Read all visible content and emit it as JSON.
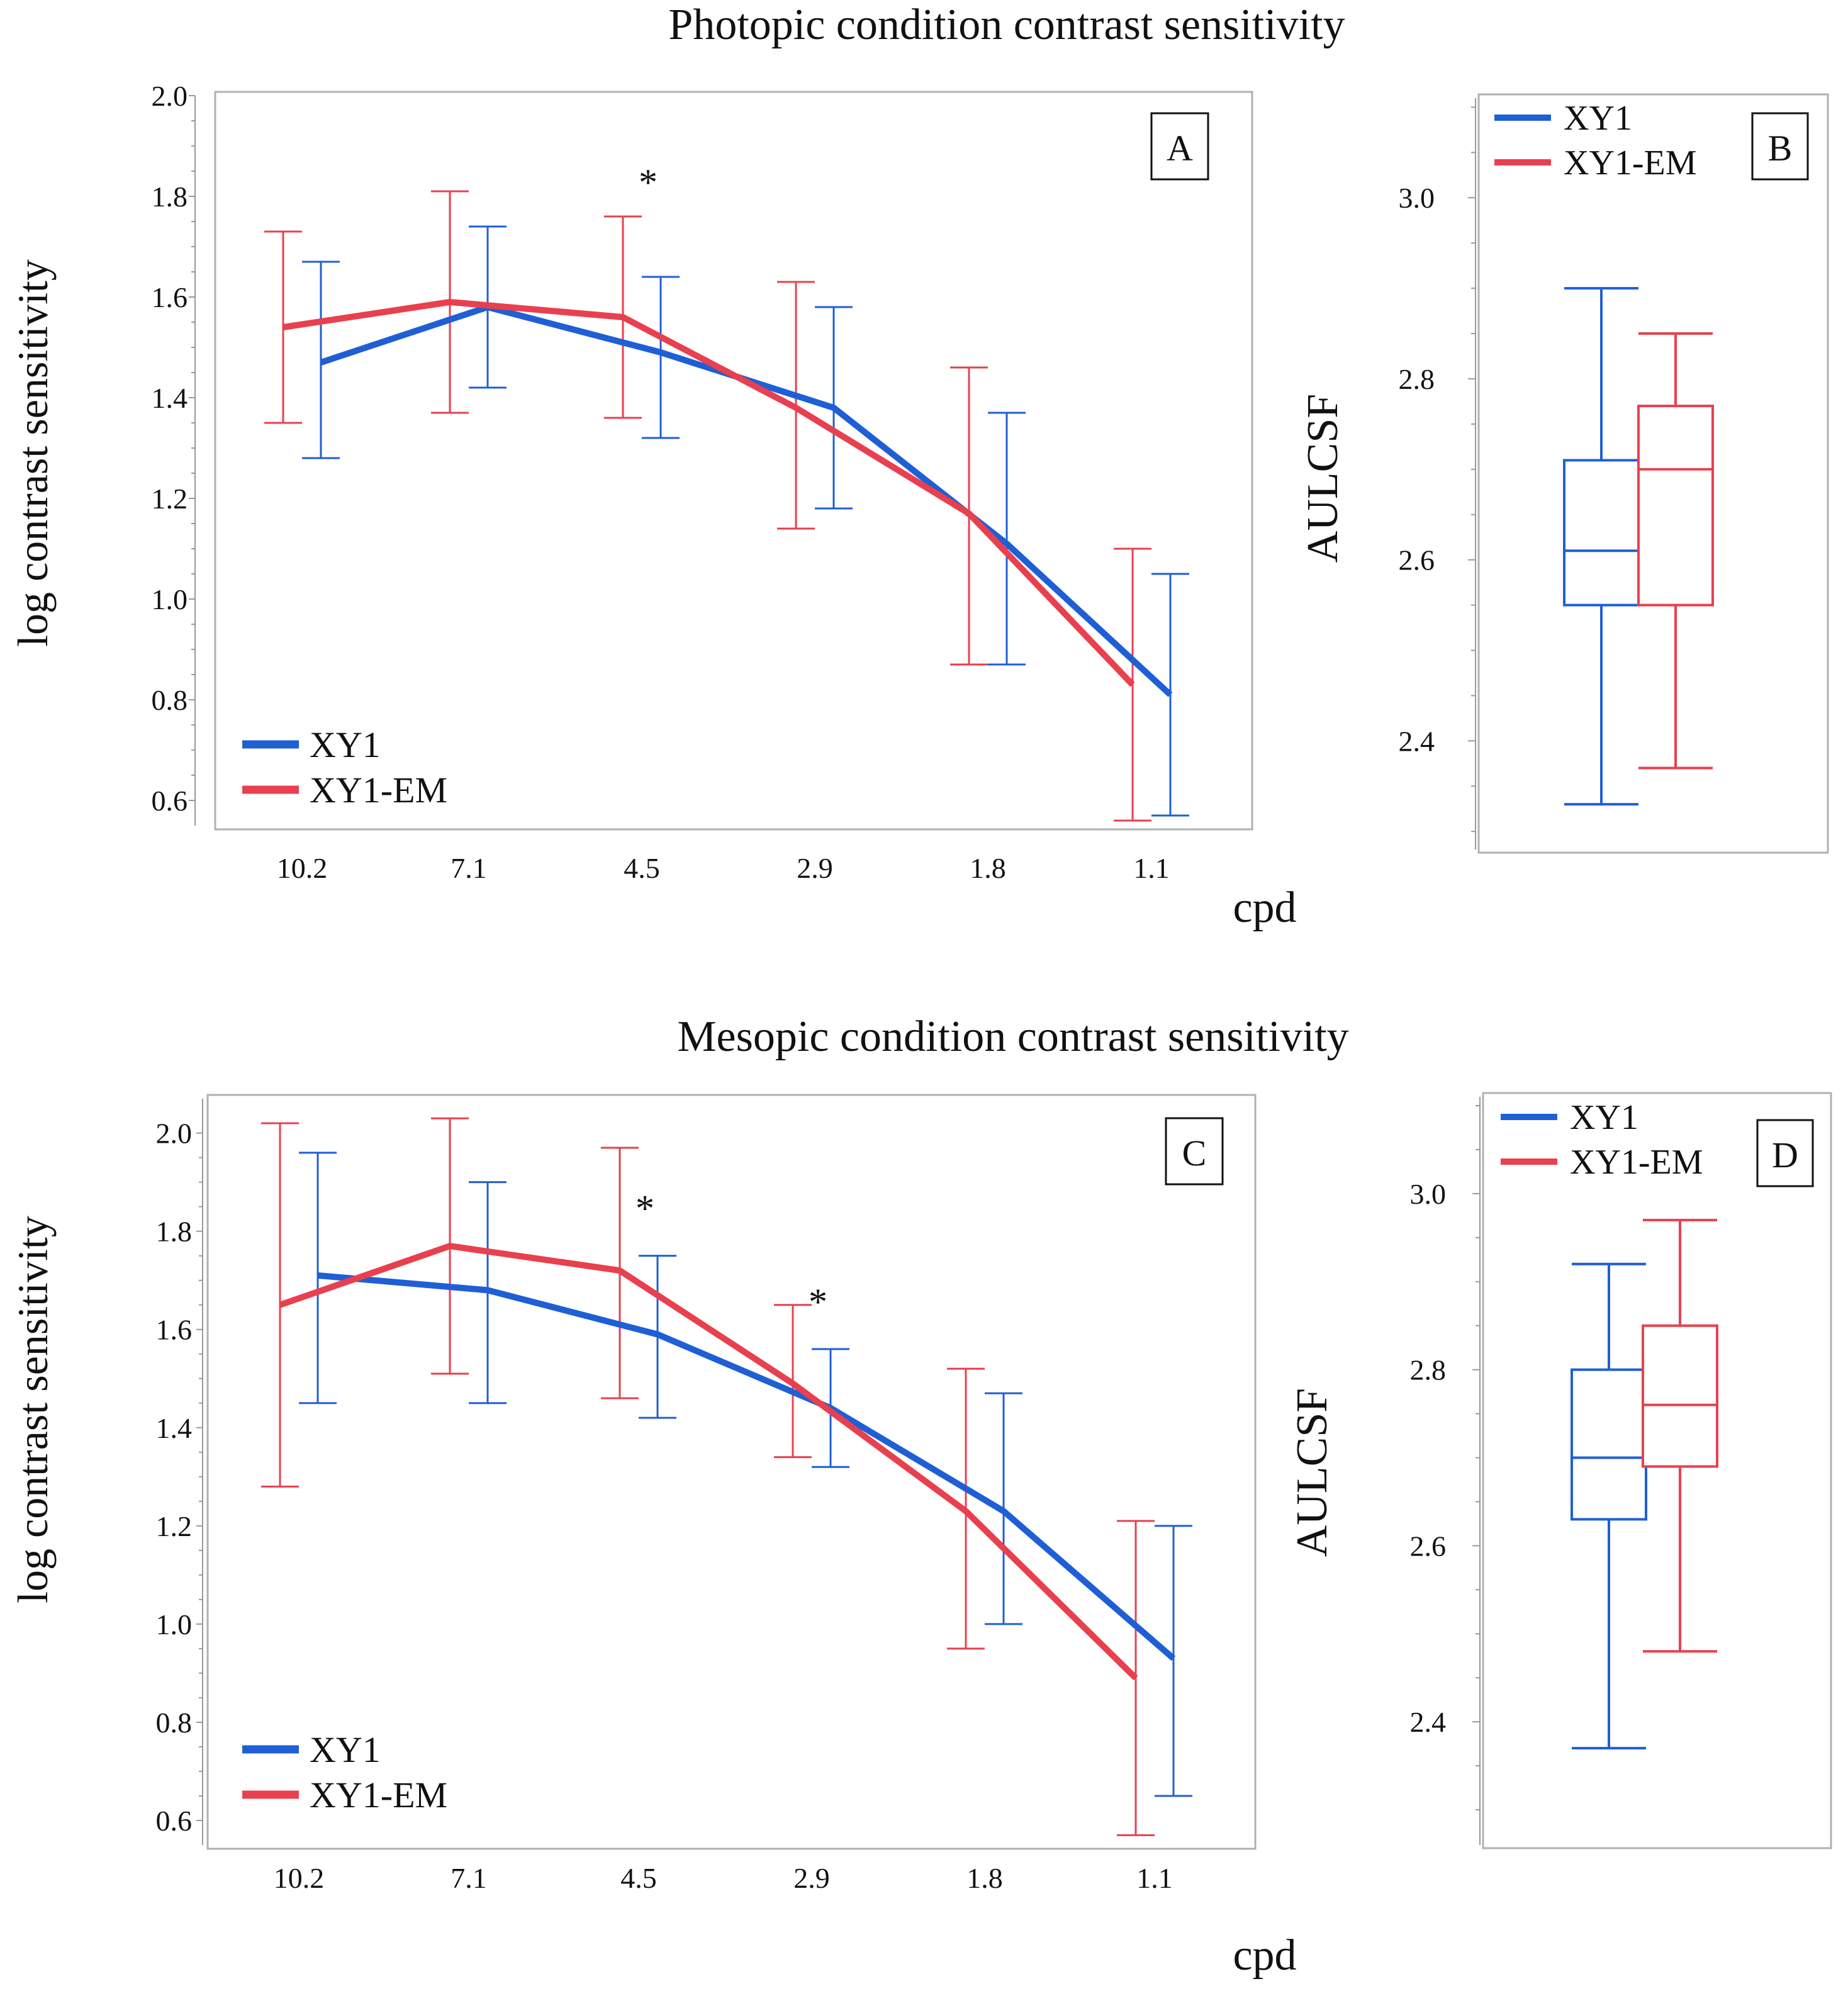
{
  "colors": {
    "xy1": "#1f5fd6",
    "xy1em": "#e8404f"
  },
  "chart_data": [
    {
      "type": "line",
      "panel": "A",
      "title": "Photopic condition contrast sensitivity",
      "ylabel": "log contrast sensitivity",
      "xlabel": "cpd",
      "ylim": [
        0.55,
        2.0
      ],
      "yticks": [
        "0.6",
        "0.8",
        "1.0",
        "1.2",
        "1.4",
        "1.6",
        "1.8",
        "2.0"
      ],
      "categories": [
        "10.2",
        "7.1",
        "4.5",
        "2.9",
        "1.8",
        "1.1"
      ],
      "legend": [
        "XY1",
        "XY1-EM"
      ],
      "significance": [
        {
          "category": "4.5",
          "label": "*"
        }
      ],
      "series": [
        {
          "name": "XY1",
          "mean": [
            1.47,
            1.58,
            1.49,
            1.38,
            1.11,
            0.81
          ],
          "err_low": [
            1.28,
            1.42,
            1.32,
            1.18,
            0.87,
            0.57
          ],
          "err_high": [
            1.67,
            1.74,
            1.64,
            1.58,
            1.37,
            1.05
          ]
        },
        {
          "name": "XY1-EM",
          "mean": [
            1.54,
            1.59,
            1.56,
            1.38,
            1.17,
            0.83
          ],
          "err_low": [
            1.35,
            1.37,
            1.36,
            1.14,
            0.87,
            0.56
          ],
          "err_high": [
            1.73,
            1.81,
            1.76,
            1.63,
            1.46,
            1.1
          ]
        }
      ]
    },
    {
      "type": "box",
      "panel": "B",
      "ylabel": "AULCSF",
      "ylim": [
        2.28,
        3.11
      ],
      "yticks": [
        "2.4",
        "2.6",
        "2.8",
        "3.0"
      ],
      "legend": [
        "XY1",
        "XY1-EM"
      ],
      "series": [
        {
          "name": "XY1",
          "min": 2.33,
          "q1": 2.55,
          "median": 2.61,
          "q3": 2.71,
          "max": 2.9
        },
        {
          "name": "XY1-EM",
          "min": 2.37,
          "q1": 2.55,
          "median": 2.7,
          "q3": 2.77,
          "max": 2.85
        }
      ]
    },
    {
      "type": "line",
      "panel": "C",
      "title": "Mesopic condition contrast sensitivity",
      "ylabel": "log contrast sensitivity",
      "xlabel": "cpd",
      "ylim": [
        0.55,
        2.07
      ],
      "yticks": [
        "0.6",
        "0.8",
        "1.0",
        "1.2",
        "1.4",
        "1.6",
        "1.8",
        "2.0"
      ],
      "categories": [
        "10.2",
        "7.1",
        "4.5",
        "2.9",
        "1.8",
        "1.1"
      ],
      "legend": [
        "XY1",
        "XY1-EM"
      ],
      "significance": [
        {
          "category": "4.5",
          "label": "*"
        },
        {
          "category": "2.9",
          "label": "*"
        }
      ],
      "series": [
        {
          "name": "XY1",
          "mean": [
            1.71,
            1.68,
            1.59,
            1.44,
            1.23,
            0.93
          ],
          "err_low": [
            1.45,
            1.45,
            1.42,
            1.32,
            1.0,
            0.65
          ],
          "err_high": [
            1.96,
            1.9,
            1.75,
            1.56,
            1.47,
            1.2
          ]
        },
        {
          "name": "XY1-EM",
          "mean": [
            1.65,
            1.77,
            1.72,
            1.49,
            1.23,
            0.89
          ],
          "err_low": [
            1.28,
            1.51,
            1.46,
            1.34,
            0.95,
            0.57
          ],
          "err_high": [
            2.02,
            2.03,
            1.97,
            1.65,
            1.52,
            1.21
          ]
        }
      ]
    },
    {
      "type": "box",
      "panel": "D",
      "ylabel": "AULCSF",
      "ylim": [
        2.26,
        3.11
      ],
      "yticks": [
        "2.4",
        "2.6",
        "2.8",
        "3.0"
      ],
      "legend": [
        "XY1",
        "XY1-EM"
      ],
      "series": [
        {
          "name": "XY1",
          "min": 2.37,
          "q1": 2.63,
          "median": 2.7,
          "q3": 2.8,
          "max": 2.92
        },
        {
          "name": "XY1-EM",
          "min": 2.48,
          "q1": 2.69,
          "median": 2.76,
          "q3": 2.85,
          "max": 2.97
        }
      ]
    }
  ]
}
